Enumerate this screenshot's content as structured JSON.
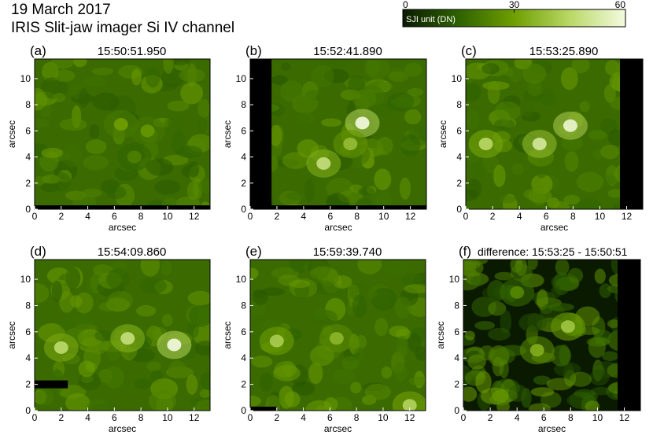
{
  "header": {
    "date": "19 March 2017",
    "instrument": "IRIS Slit-jaw imager Si IV channel"
  },
  "colorbar": {
    "label": "SJI unit (DN)",
    "ticks": [
      0,
      30,
      60
    ],
    "range": [
      0,
      60
    ],
    "colors": [
      "#0a1a00",
      "#2e6200",
      "#6f9f00",
      "#b9d866",
      "#f4fbe0"
    ]
  },
  "chart_data": [
    {
      "type": "heatmap",
      "panel": "(a)",
      "title": "15:50:51.950",
      "xlabel": "arcsec",
      "ylabel": "arcsec",
      "xlim": [
        0,
        13.2
      ],
      "ylim": [
        0,
        11.5
      ],
      "xticks": [
        0,
        2,
        4,
        6,
        8,
        10,
        12
      ],
      "yticks": [
        0,
        2,
        4,
        6,
        8,
        10
      ],
      "masks": [
        {
          "x": [
            0,
            13.2
          ],
          "y": [
            0,
            0.3
          ]
        }
      ],
      "features": [
        {
          "x": 6.5,
          "y": 6.5,
          "value": 30
        },
        {
          "x": 8.5,
          "y": 6.0,
          "value": 28
        },
        {
          "x": 7.5,
          "y": 4.0,
          "value": 22
        }
      ]
    },
    {
      "type": "heatmap",
      "panel": "(b)",
      "title": "15:52:41.890",
      "xlabel": "arcsec",
      "ylabel": "arcsec",
      "xlim": [
        0,
        13.2
      ],
      "ylim": [
        0,
        11.5
      ],
      "xticks": [
        0,
        2,
        4,
        6,
        8,
        10,
        12
      ],
      "yticks": [
        0,
        2,
        4,
        6,
        8,
        10
      ],
      "masks": [
        {
          "x": [
            0,
            1.6
          ],
          "y": [
            0,
            11.5
          ]
        },
        {
          "x": [
            0,
            13.2
          ],
          "y": [
            0,
            0.3
          ]
        }
      ],
      "features": [
        {
          "x": 8.4,
          "y": 6.6,
          "value": 60
        },
        {
          "x": 5.5,
          "y": 3.5,
          "value": 48
        },
        {
          "x": 7.5,
          "y": 5.0,
          "value": 38
        }
      ]
    },
    {
      "type": "heatmap",
      "panel": "(c)",
      "title": "15:53:25.890",
      "xlabel": "arcsec",
      "ylabel": "arcsec",
      "xlim": [
        0,
        13.2
      ],
      "ylim": [
        0,
        11.5
      ],
      "xticks": [
        0,
        2,
        4,
        6,
        8,
        10,
        12
      ],
      "yticks": [
        0,
        2,
        4,
        6,
        8,
        10
      ],
      "masks": [
        {
          "x": [
            11.5,
            13.2
          ],
          "y": [
            0,
            11.5
          ]
        }
      ],
      "features": [
        {
          "x": 7.8,
          "y": 6.4,
          "value": 58
        },
        {
          "x": 5.5,
          "y": 5.0,
          "value": 52
        },
        {
          "x": 1.5,
          "y": 5.0,
          "value": 45
        }
      ]
    },
    {
      "type": "heatmap",
      "panel": "(d)",
      "title": "15:54:09.860",
      "xlabel": "arcsec",
      "ylabel": "arcsec",
      "xlim": [
        0,
        13.2
      ],
      "ylim": [
        0,
        11.5
      ],
      "xticks": [
        0,
        2,
        4,
        6,
        8,
        10,
        12
      ],
      "yticks": [
        0,
        2,
        4,
        6,
        8,
        10
      ],
      "masks": [
        {
          "x": [
            0,
            2.5
          ],
          "y": [
            1.7,
            2.3
          ]
        }
      ],
      "features": [
        {
          "x": 7.0,
          "y": 5.5,
          "value": 48
        },
        {
          "x": 2.0,
          "y": 4.8,
          "value": 46
        },
        {
          "x": 10.5,
          "y": 5.0,
          "value": 60
        }
      ]
    },
    {
      "type": "heatmap",
      "panel": "(e)",
      "title": "15:59:39.740",
      "xlabel": "arcsec",
      "ylabel": "arcsec",
      "xlim": [
        0,
        13.2
      ],
      "ylim": [
        0,
        11.5
      ],
      "xticks": [
        0,
        2,
        4,
        6,
        8,
        10,
        12
      ],
      "yticks": [
        0,
        2,
        4,
        6,
        8,
        10
      ],
      "masks": [
        {
          "x": [
            0,
            2.0
          ],
          "y": [
            0,
            0.3
          ]
        }
      ],
      "features": [
        {
          "x": 2.0,
          "y": 5.3,
          "value": 42
        },
        {
          "x": 6.5,
          "y": 5.5,
          "value": 36
        },
        {
          "x": 12.0,
          "y": 0.4,
          "value": 44
        }
      ]
    },
    {
      "type": "heatmap",
      "panel": "(f)",
      "title": "difference: 15:53:25 - 15:50:51",
      "xlabel": "arcsec",
      "ylabel": "arcsec",
      "xlim": [
        0,
        13.2
      ],
      "ylim": [
        0,
        11.5
      ],
      "xticks": [
        0,
        2,
        4,
        6,
        8,
        10,
        12
      ],
      "yticks": [
        0,
        2,
        4,
        6,
        8,
        10
      ],
      "masks": [
        {
          "x": [
            11.5,
            13.2
          ],
          "y": [
            0,
            11.5
          ]
        }
      ],
      "features": [
        {
          "x": 7.8,
          "y": 6.4,
          "value": 40
        },
        {
          "x": 5.5,
          "y": 4.6,
          "value": 34
        },
        {
          "x": 4.0,
          "y": 9.0,
          "value": 24
        }
      ]
    }
  ]
}
